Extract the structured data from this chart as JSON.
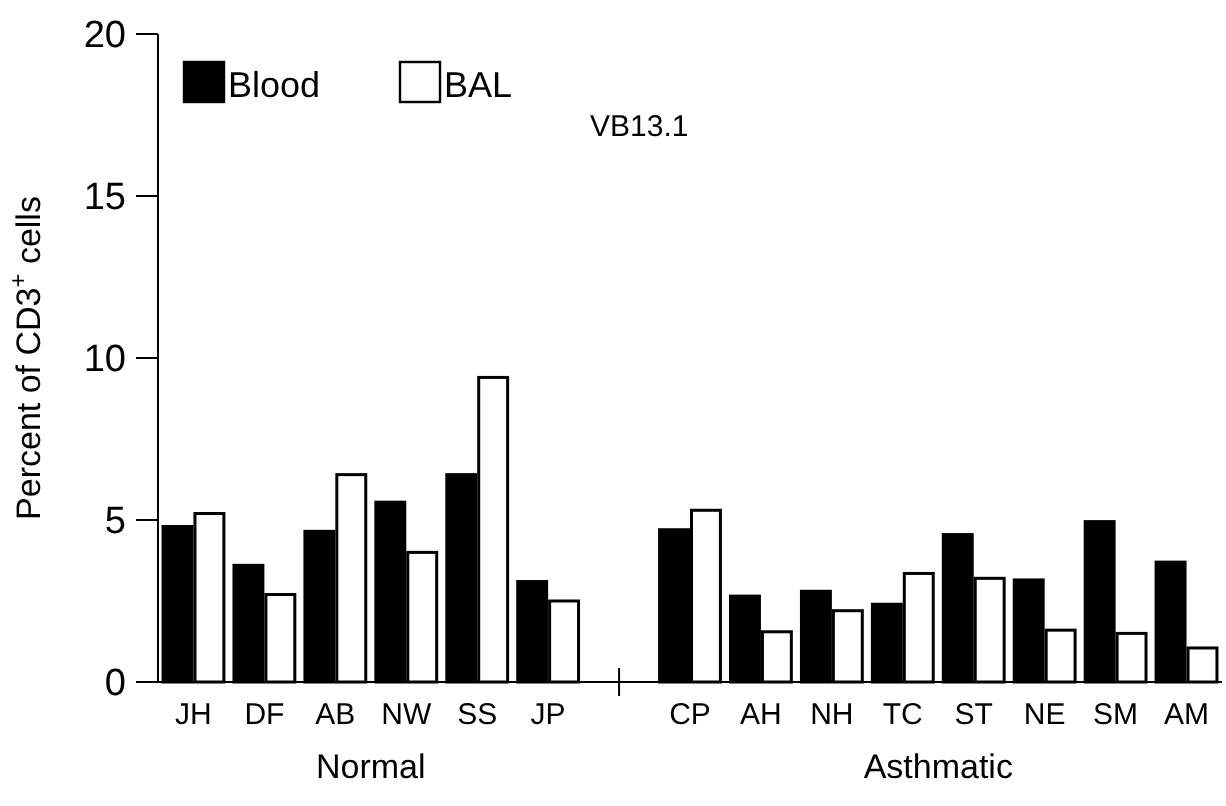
{
  "chart_data": {
    "type": "bar",
    "title": "VB13.1",
    "ylabel": "Percent of CD3$^{+}$ cells",
    "categories": [
      "JH",
      "DF",
      "AB",
      "NW",
      "SS",
      "JP",
      null,
      "CP",
      "AH",
      "NH",
      "TC",
      "ST",
      "NE",
      "SM",
      "AM"
    ],
    "series": [
      {
        "name": "Blood",
        "color": "#000000",
        "values": [
          4.8,
          3.6,
          4.65,
          5.55,
          6.4,
          3.1,
          null,
          4.7,
          2.65,
          2.8,
          2.4,
          4.55,
          3.15,
          4.95,
          3.7
        ]
      },
      {
        "name": "BAL",
        "color": "#ffffff",
        "values": [
          5.2,
          2.7,
          6.4,
          4.0,
          9.4,
          2.5,
          null,
          5.3,
          1.55,
          2.2,
          3.35,
          3.2,
          1.6,
          1.5,
          1.05
        ]
      }
    ],
    "annotations": [
      "Normal",
      "Asthmatic"
    ],
    "ylim": [
      0,
      20
    ],
    "yticks": [
      0,
      5,
      10,
      15,
      20
    ],
    "grid": false,
    "legend": "top left"
  }
}
